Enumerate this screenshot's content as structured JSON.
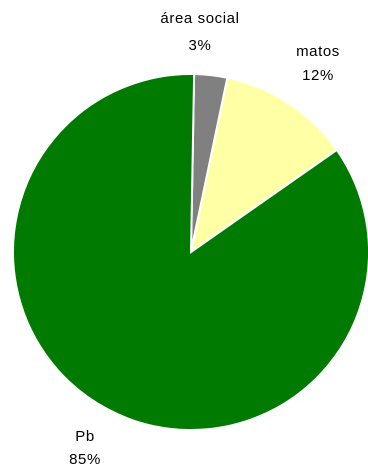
{
  "chart_data": {
    "type": "pie",
    "slices": [
      {
        "label": "área social",
        "percent_label": "3%",
        "value": 3,
        "color": "#808080"
      },
      {
        "label": "matos",
        "percent_label": "12%",
        "value": 12,
        "color": "#FFFFA6"
      },
      {
        "label": "Pb",
        "percent_label": "85%",
        "value": 85,
        "color": "#007A00"
      }
    ]
  }
}
